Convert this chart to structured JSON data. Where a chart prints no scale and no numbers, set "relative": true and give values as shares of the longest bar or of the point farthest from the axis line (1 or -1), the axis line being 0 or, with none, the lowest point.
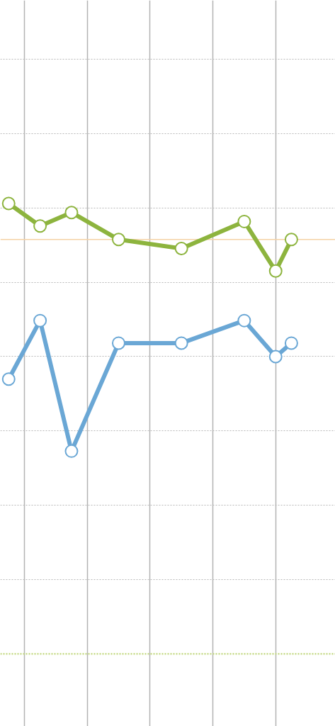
{
  "chart_data": {
    "type": "line",
    "relative": true,
    "categories": [
      null,
      null,
      null,
      null,
      null,
      null,
      null,
      null,
      null,
      null,
      null,
      null,
      null,
      null,
      null,
      null,
      null,
      null,
      null
    ],
    "series": [
      {
        "color": "#8db43e",
        "values": [
          1.0,
          null,
          0.95,
          null,
          0.98,
          null,
          null,
          0.92,
          null,
          null,
          null,
          0.9,
          null,
          null,
          null,
          0.96,
          null,
          0.85,
          0.92
        ]
      },
      {
        "color": "#6aa7d5",
        "values": [
          0.61,
          null,
          0.74,
          null,
          0.45,
          null,
          null,
          0.69,
          null,
          null,
          null,
          0.69,
          null,
          null,
          null,
          0.74,
          null,
          0.66,
          0.69
        ]
      }
    ],
    "ref_lines": [
      {
        "axis": "y",
        "value": 0.92,
        "color": "#f5d2a6"
      }
    ],
    "grid": true,
    "marker": "circle",
    "line_style": "solid",
    "tick_labels": false
  }
}
